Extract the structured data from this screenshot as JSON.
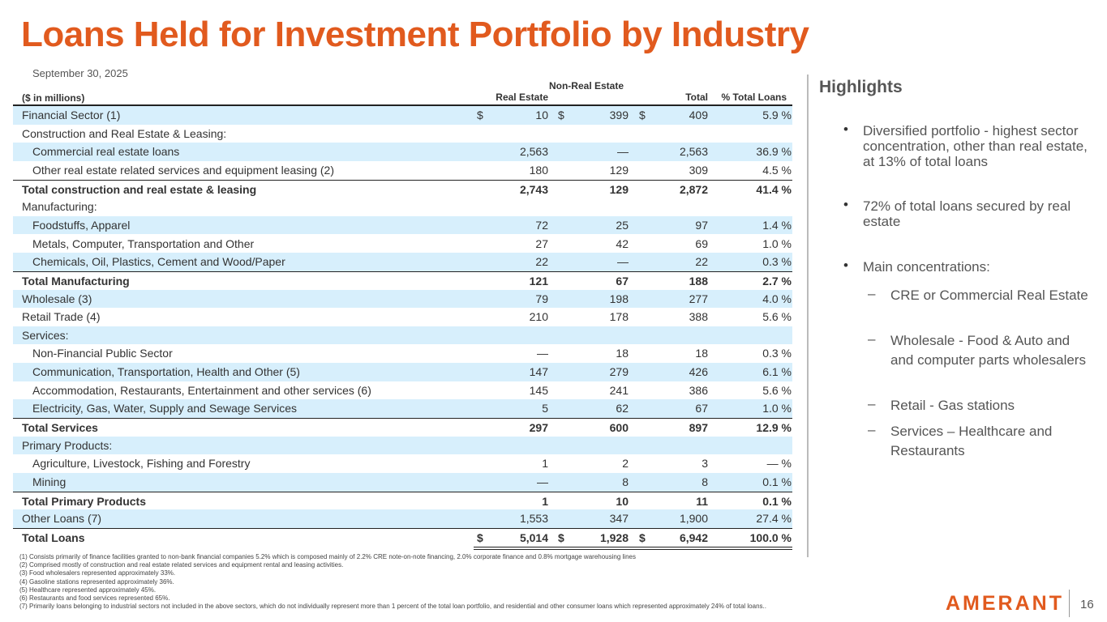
{
  "header": {
    "title": "Loans Held for Investment Portfolio by Industry",
    "date": "September 30, 2025"
  },
  "table": {
    "headers": [
      "($ in millions)",
      "Real Estate",
      "Non-Real Estate",
      "Total",
      "% Total Loans"
    ],
    "rows": [
      {
        "label": "Financial Sector (1)",
        "currency": "$",
        "values": [
          "10",
          "399",
          "409",
          "5.9 %"
        ]
      },
      {
        "label": "Construction and Real Estate & Leasing:"
      },
      {
        "label": "Commercial real estate loans",
        "values": [
          "2,563",
          "—",
          "2,563",
          "36.9 %"
        ]
      },
      {
        "label": "Other real estate related services and equipment leasing (2)",
        "values": [
          "180",
          "129",
          "309",
          "4.5 %"
        ]
      },
      {
        "label": "Total construction and real estate & leasing",
        "values": [
          "2,743",
          "129",
          "2,872",
          "41.4 %"
        ]
      },
      {
        "label": "Manufacturing:"
      },
      {
        "label": "Foodstuffs, Apparel",
        "values": [
          "72",
          "25",
          "97",
          "1.4 %"
        ]
      },
      {
        "label": "Metals, Computer, Transportation and Other",
        "values": [
          "27",
          "42",
          "69",
          "1.0 %"
        ]
      },
      {
        "label": "Chemicals, Oil, Plastics, Cement and Wood/Paper",
        "values": [
          "22",
          "—",
          "22",
          "0.3 %"
        ]
      },
      {
        "label": "Total Manufacturing",
        "values": [
          "121",
          "67",
          "188",
          "2.7 %"
        ]
      },
      {
        "label": "Wholesale (3)",
        "values": [
          "79",
          "198",
          "277",
          "4.0 %"
        ]
      },
      {
        "label": "Retail Trade (4)",
        "values": [
          "210",
          "178",
          "388",
          "5.6 %"
        ]
      },
      {
        "label": "Services:"
      },
      {
        "label": "Non-Financial Public Sector",
        "values": [
          "—",
          "18",
          "18",
          "0.3 %"
        ]
      },
      {
        "label": "Communication, Transportation, Health and Other (5)",
        "values": [
          "147",
          "279",
          "426",
          "6.1 %"
        ]
      },
      {
        "label": "Accommodation, Restaurants, Entertainment and other services (6)",
        "values": [
          "145",
          "241",
          "386",
          "5.6 %"
        ]
      },
      {
        "label": "Electricity, Gas, Water, Supply and Sewage Services",
        "values": [
          "5",
          "62",
          "67",
          "1.0 %"
        ]
      },
      {
        "label": "Total Services",
        "values": [
          "297",
          "600",
          "897",
          "12.9 %"
        ]
      },
      {
        "label": "Primary Products:"
      },
      {
        "label": "Agriculture, Livestock, Fishing and Forestry",
        "values": [
          "1",
          "2",
          "3",
          "— %"
        ]
      },
      {
        "label": "Mining",
        "values": [
          "—",
          "8",
          "8",
          "0.1 %"
        ]
      },
      {
        "label": "Total Primary Products",
        "values": [
          "1",
          "10",
          "11",
          "0.1 %"
        ]
      },
      {
        "label": "Other Loans (7)",
        "values": [
          "1,553",
          "347",
          "1,900",
          "27.4 %"
        ]
      },
      {
        "label": "Total Loans",
        "currency": "$",
        "values": [
          "5,014",
          "1,928",
          "6,942",
          "100.0 %"
        ]
      }
    ]
  },
  "highlights": {
    "title": "Highlights",
    "bullets": [
      {
        "text": "Diversified portfolio - highest sector concentration, other than real estate, at 13% of total loans"
      },
      {
        "text": "72% of total loans secured by real estate"
      },
      {
        "text": "Main concentrations:",
        "subitems": [
          "CRE or Commercial Real Estate",
          "Wholesale - Food & Auto and and computer parts wholesalers",
          "Retail - Gas stations",
          "Services – Healthcare and Restaurants"
        ]
      }
    ]
  },
  "footnotes": [
    "(1) Consists primarily of finance facilities granted to non-bank financial companies 5.2% which is composed  mainly of 2.2% CRE note-on-note financing, 2.0%  corporate finance and 0.8%  mortgage warehousing lines",
    "(2) Comprised mostly of construction and real estate related services and equipment rental and leasing activities.",
    "(3) Food wholesalers represented approximately 33%.",
    "(4) Gasoline stations represented approximately 36%.",
    "(5) Healthcare represented approximately 45%.",
    "(6) Restaurants and food services represented 65%.",
    "(7) Primarily loans belonging to industrial sectors not included in the above sectors, which do not individually represent more than 1 percent of the total loan portfolio, and residential and other consumer loans which represented approximately 24% of total loans.."
  ],
  "footer": {
    "logo": "AMERANT",
    "page": "16"
  }
}
